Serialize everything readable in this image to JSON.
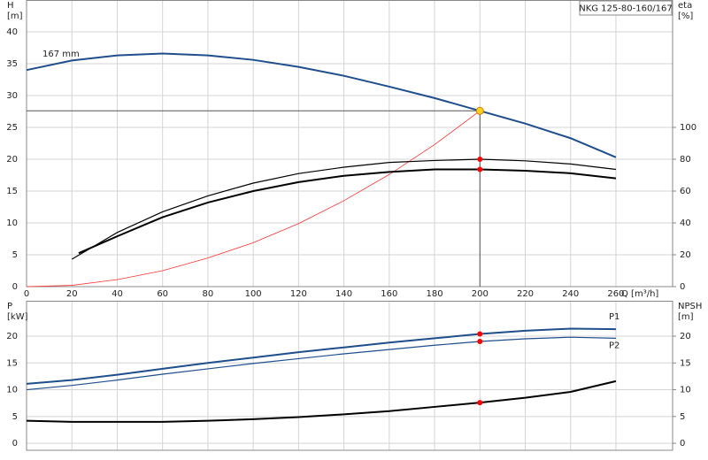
{
  "chart_data": [
    {
      "type": "line",
      "title": "NKG 125-80-160/167",
      "y_label": "H",
      "y_unit": "[m]",
      "y2_label": "eta",
      "y2_unit": "[%]",
      "x_label": "Q [m³/h]",
      "xlim": [
        0,
        285
      ],
      "xticks": [
        0,
        20,
        40,
        60,
        80,
        100,
        120,
        140,
        160,
        180,
        200,
        220,
        240,
        260
      ],
      "ylim": [
        0,
        45
      ],
      "yticks": [
        0,
        5,
        10,
        15,
        20,
        25,
        30,
        35,
        40
      ],
      "y2lim": [
        0,
        180
      ],
      "y2ticks": [
        0,
        20,
        40,
        60,
        80,
        100
      ],
      "grid": true,
      "series": [
        {
          "name": "167 mm",
          "color": "#1f4e8c",
          "weight": "bold",
          "x": [
            0,
            20,
            40,
            60,
            80,
            100,
            120,
            140,
            160,
            180,
            200,
            220,
            240,
            260
          ],
          "values": [
            34.0,
            35.5,
            36.3,
            36.6,
            36.3,
            35.6,
            34.5,
            33.1,
            31.4,
            29.6,
            27.6,
            25.6,
            23.3,
            20.3
          ]
        },
        {
          "color": "#ff3333",
          "weight": "thin",
          "x": [
            0,
            20,
            40,
            60,
            80,
            100,
            120,
            140,
            160,
            180,
            200
          ],
          "values": [
            0,
            0.2,
            1.1,
            2.5,
            4.5,
            6.9,
            9.9,
            13.5,
            17.6,
            22.3,
            27.6
          ]
        },
        {
          "color": "#000000",
          "weight": "normal",
          "axis": "y2",
          "x": [
            20,
            40,
            60,
            80,
            100,
            120,
            140,
            160,
            180,
            200,
            220,
            240,
            260
          ],
          "values": [
            17.2,
            34,
            47,
            57,
            65,
            71,
            75,
            78,
            79.2,
            80,
            79,
            77,
            73.6
          ]
        },
        {
          "color": "#000000",
          "weight": "bold",
          "axis": "y2",
          "x": [
            23,
            40,
            60,
            80,
            100,
            120,
            140,
            160,
            180,
            200,
            220,
            240,
            260
          ],
          "values": [
            21,
            31.6,
            43.6,
            52.8,
            60,
            65.6,
            69.6,
            72,
            73.6,
            73.6,
            72.8,
            71.2,
            68
          ]
        }
      ],
      "points": [
        {
          "x": 200,
          "y": 27.6,
          "color": "#ffd21f",
          "duty": true
        },
        {
          "x": 200,
          "y": 80,
          "color": "#ff0000",
          "axis": "y2"
        },
        {
          "x": 200,
          "y": 73.6,
          "color": "#ff0000",
          "axis": "y2"
        }
      ]
    },
    {
      "type": "line",
      "y_label": "P",
      "y_unit": "[kW]",
      "y2_label": "NPSH",
      "y2_unit": "[m]",
      "xlim": [
        0,
        285
      ],
      "ylim": [
        -1.3,
        26.6
      ],
      "yticks": [
        0,
        5,
        10,
        15,
        20
      ],
      "y2lim": [
        -1.3,
        26.6
      ],
      "y2ticks": [
        0,
        5,
        10,
        15,
        20
      ],
      "grid": true,
      "series": [
        {
          "name": "P1",
          "color": "#1f4e8c",
          "weight": "bold",
          "x": [
            0,
            20,
            40,
            60,
            80,
            100,
            120,
            140,
            160,
            180,
            200,
            220,
            240,
            260
          ],
          "values": [
            11.1,
            11.8,
            12.8,
            13.9,
            15.0,
            16.0,
            17.0,
            17.9,
            18.8,
            19.6,
            20.4,
            21.0,
            21.4,
            21.3
          ]
        },
        {
          "name": "P2",
          "color": "#1f4e8c",
          "weight": "normal",
          "x": [
            0,
            20,
            40,
            60,
            80,
            100,
            120,
            140,
            160,
            180,
            200,
            220,
            240,
            260
          ],
          "values": [
            10.0,
            10.8,
            11.8,
            12.9,
            13.9,
            14.9,
            15.8,
            16.7,
            17.5,
            18.3,
            19.0,
            19.5,
            19.8,
            19.6
          ]
        },
        {
          "color": "#000000",
          "weight": "bold",
          "axis": "y2",
          "x": [
            0,
            20,
            40,
            60,
            80,
            100,
            120,
            140,
            160,
            180,
            200,
            220,
            240,
            260
          ],
          "values": [
            4.2,
            4.0,
            4.0,
            4.0,
            4.2,
            4.5,
            4.9,
            5.4,
            6.0,
            6.8,
            7.6,
            8.5,
            9.6,
            11.6
          ]
        }
      ],
      "points": [
        {
          "x": 200,
          "y": 20.4,
          "color": "#ff0000"
        },
        {
          "x": 200,
          "y": 19.0,
          "color": "#ff0000"
        },
        {
          "x": 200,
          "y": 7.6,
          "color": "#ff0000",
          "axis": "y2"
        }
      ]
    }
  ]
}
